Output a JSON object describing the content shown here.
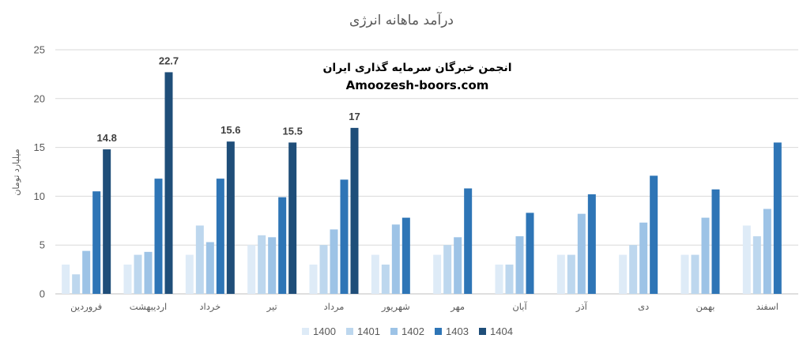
{
  "chart_data": {
    "type": "bar",
    "title": "درآمد ماهانه انرژی",
    "ylabel": "میلیارد تومان",
    "xlabel": "",
    "ylim": [
      0,
      25
    ],
    "yticks": [
      0,
      5,
      10,
      15,
      20,
      25
    ],
    "grid": true,
    "legend_position": "bottom",
    "watermark": {
      "line1": "انجمن خبرگان سرمایه گذاری ایران",
      "line2": "Amoozesh-boors.com"
    },
    "categories": [
      "فروردین",
      "اردیبهشت",
      "خرداد",
      "تیر",
      "مرداد",
      "شهریور",
      "مهر",
      "آبان",
      "آذر",
      "دی",
      "بهمن",
      "اسفند"
    ],
    "series": [
      {
        "name": "1400",
        "color": "#deebf7",
        "values": [
          3,
          3,
          4,
          5,
          3,
          4,
          4,
          3,
          4,
          4,
          4,
          7
        ]
      },
      {
        "name": "1401",
        "color": "#bdd7ee",
        "values": [
          2,
          4,
          7,
          6,
          5,
          3,
          5,
          3,
          4,
          5,
          4,
          5.9
        ]
      },
      {
        "name": "1402",
        "color": "#9dc3e6",
        "values": [
          4.4,
          4.3,
          5.3,
          5.8,
          6.6,
          7.1,
          5.8,
          5.9,
          8.2,
          7.3,
          7.8,
          8.7
        ]
      },
      {
        "name": "1403",
        "color": "#2e75b6",
        "values": [
          10.5,
          11.8,
          11.8,
          9.9,
          11.7,
          7.8,
          10.8,
          8.3,
          10.2,
          12.1,
          10.7,
          15.5
        ]
      },
      {
        "name": "1404",
        "color": "#1f4e79",
        "values": [
          14.8,
          22.7,
          15.6,
          15.5,
          17,
          null,
          null,
          null,
          null,
          null,
          null,
          null
        ]
      }
    ],
    "data_labels": {
      "series": "1404",
      "values": [
        "14.8",
        "22.7",
        "15.6",
        "15.5",
        "17"
      ]
    }
  }
}
